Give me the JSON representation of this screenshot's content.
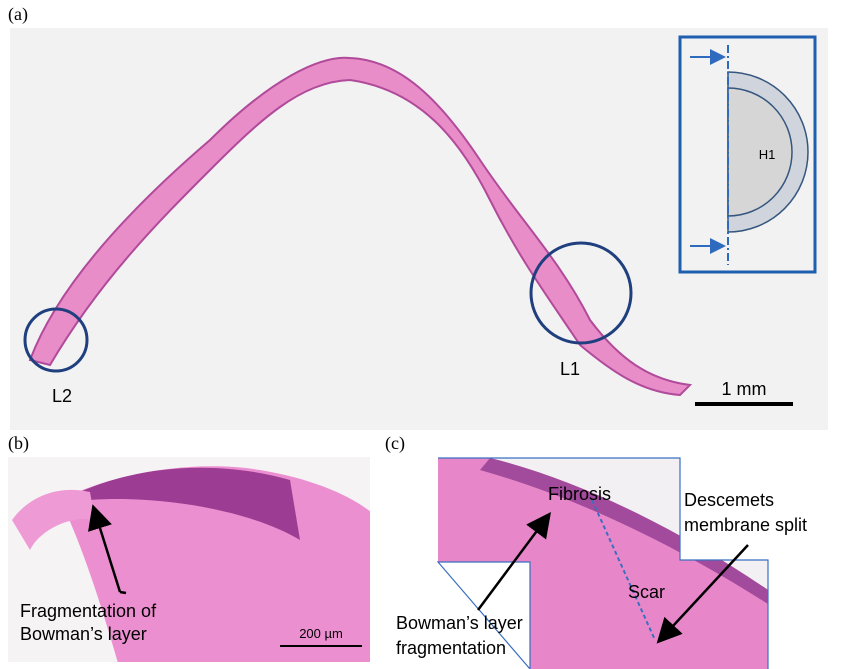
{
  "panel_a": {
    "label": "(a)",
    "regions": [
      "L2",
      "L1"
    ],
    "scale_bar": "1 mm",
    "inset_label": "H1"
  },
  "panel_b": {
    "label": "(b)",
    "annotation": [
      "Fragmentation of",
      "Bowman’s layer"
    ],
    "scale_bar": "200 µm"
  },
  "panel_c": {
    "label": "(c)",
    "annotations": {
      "fibrosis": "Fibrosis",
      "descemets": [
        "Descemets",
        "membrane split"
      ],
      "scar": "Scar",
      "bowman": [
        "Bowman’s layer",
        "fragmentation"
      ]
    }
  }
}
